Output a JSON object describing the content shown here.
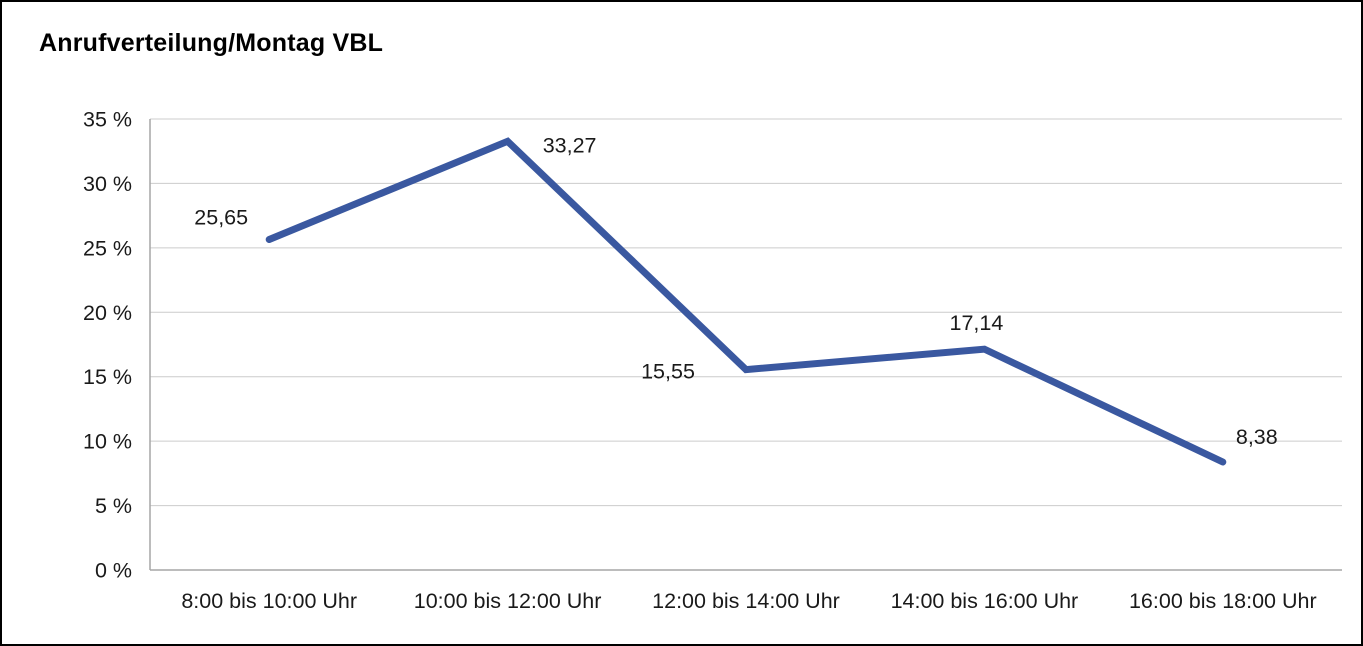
{
  "chart_data": {
    "type": "line",
    "title": "Anrufverteilung/Montag VBL",
    "categories": [
      "8:00 bis 10:00 Uhr",
      "10:00 bis 12:00 Uhr",
      "12:00 bis 14:00 Uhr",
      "14:00 bis 16:00 Uhr",
      "16:00 bis 18:00 Uhr"
    ],
    "values": [
      25.65,
      33.27,
      15.55,
      17.14,
      8.38
    ],
    "value_labels": [
      "25,65",
      "33,27",
      "15,55",
      "17,14",
      "8,38"
    ],
    "xlabel": "",
    "ylabel": "",
    "ylim": [
      0,
      35
    ],
    "ytick_step": 5,
    "ytick_labels": [
      "0 %",
      "5 %",
      "10 %",
      "15 %",
      "20 %",
      "25 %",
      "30 %",
      "35 %"
    ],
    "grid": true,
    "legend": "none",
    "line_color": "#3a58a0",
    "grid_color": "#cccccc",
    "axis_color": "#a6a6a6",
    "text_color": "#1a1a1a"
  }
}
